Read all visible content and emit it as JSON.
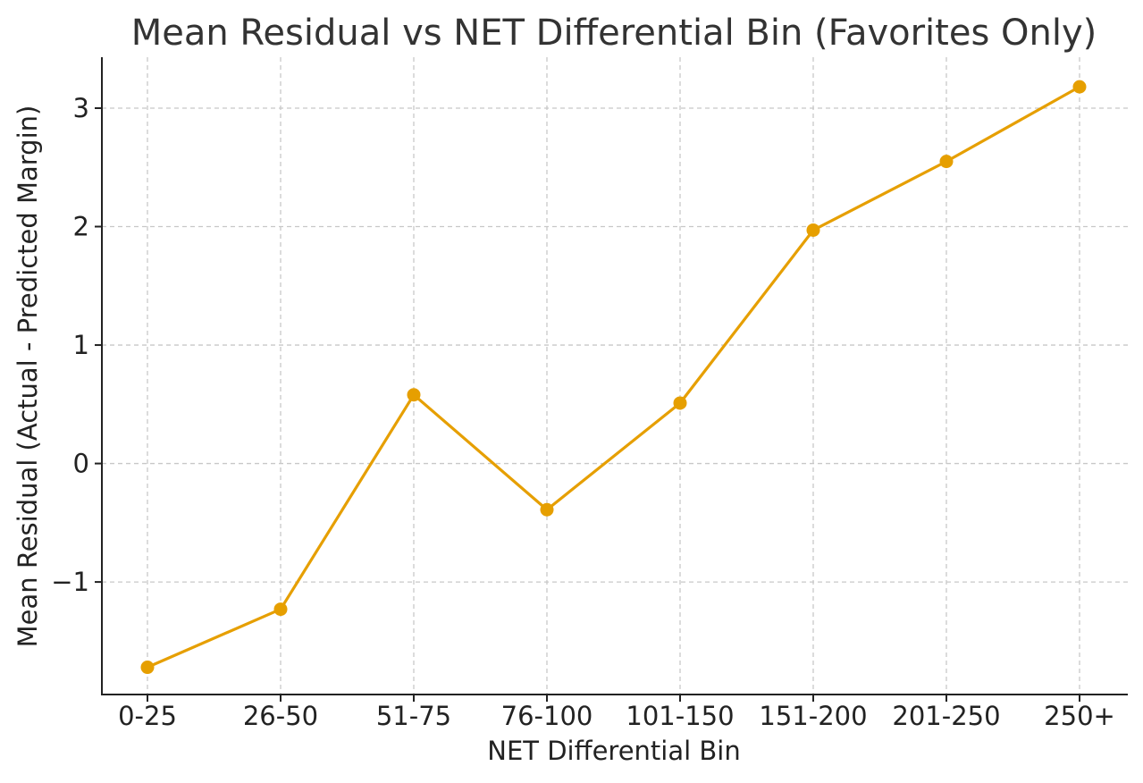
{
  "chart_data": {
    "type": "line",
    "title": "Mean Residual vs NET Differential Bin (Favorites Only)",
    "xlabel": "NET Differential Bin",
    "ylabel": "Mean Residual (Actual - Predicted Margin)",
    "categories": [
      "0-25",
      "26-50",
      "51-75",
      "76-100",
      "101-150",
      "151-200",
      "201-250",
      "250+"
    ],
    "series": [
      {
        "values": [
          -1.72,
          -1.23,
          0.58,
          -0.39,
          0.51,
          1.97,
          2.55,
          3.18
        ],
        "color": "#E69F00",
        "marker": "circle"
      }
    ],
    "yticks": [
      -1,
      0,
      1,
      2,
      3
    ],
    "ytick_labels": [
      "−1",
      "0",
      "1",
      "2",
      "3"
    ],
    "ylim": [
      -1.95,
      3.43
    ],
    "grid": true,
    "legend": "none"
  }
}
